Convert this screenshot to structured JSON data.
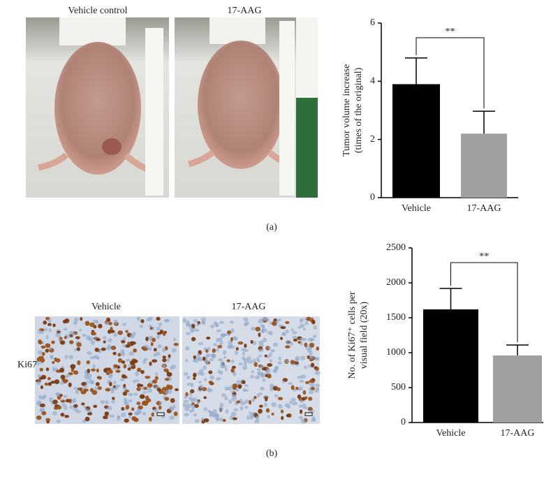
{
  "figure": {
    "panel_a": {
      "photo_labels": [
        "Vehicle control",
        "17-AAG"
      ],
      "label": "(a)"
    },
    "panel_b": {
      "photo_labels": [
        "Vehicle",
        "17-AAG"
      ],
      "row_label": "Ki67",
      "label": "(b)"
    }
  },
  "chart_data": [
    {
      "type": "bar",
      "categories": [
        "Vehicle",
        "17-AAG"
      ],
      "values": [
        3.9,
        2.2
      ],
      "errors": [
        0.9,
        0.77
      ],
      "colors": [
        "#000000",
        "#a0a0a0"
      ],
      "ylim": [
        0,
        6
      ],
      "yticks": [
        0,
        2,
        4,
        6
      ],
      "ylabel": [
        "Tumor volume increase",
        "(times of the original)"
      ],
      "annotation": "**"
    },
    {
      "type": "bar",
      "categories": [
        "Vehicle",
        "17-AAG"
      ],
      "values": [
        1620,
        960
      ],
      "errors": [
        300,
        150
      ],
      "colors": [
        "#000000",
        "#a0a0a0"
      ],
      "ylim": [
        0,
        2500
      ],
      "yticks": [
        0,
        500,
        1000,
        1500,
        2000,
        2500
      ],
      "ylabel": [
        "No. of Ki67⁺ cells per",
        "visual field (20x)"
      ],
      "annotation": "**"
    }
  ]
}
